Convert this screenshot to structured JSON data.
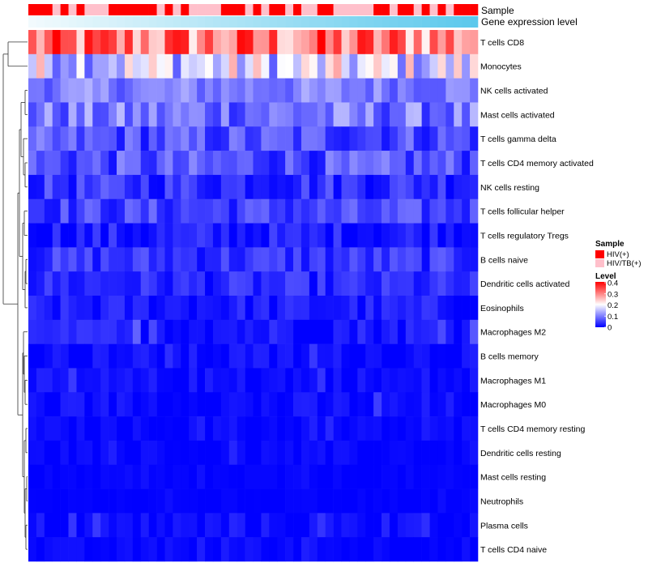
{
  "chart_data": {
    "type": "heatmap",
    "title": "",
    "annotations": {
      "sample": {
        "label": "Sample",
        "values": [
          "HIV(+)",
          "HIV(+)",
          "HIV(+)",
          "HIV/TB(+)",
          "HIV(+)",
          "HIV/TB(+)",
          "HIV(+)",
          "HIV/TB(+)",
          "HIV/TB(+)",
          "HIV/TB(+)",
          "HIV(+)",
          "HIV(+)",
          "HIV(+)",
          "HIV(+)",
          "HIV(+)",
          "HIV(+)",
          "HIV/TB(+)",
          "HIV(+)",
          "HIV/TB(+)",
          "HIV(+)",
          "HIV/TB(+)",
          "HIV/TB(+)",
          "HIV/TB(+)",
          "HIV/TB(+)",
          "HIV(+)",
          "HIV(+)",
          "HIV(+)",
          "HIV/TB(+)",
          "HIV(+)",
          "HIV/TB(+)",
          "HIV(+)",
          "HIV(+)",
          "HIV/TB(+)",
          "HIV(+)",
          "HIV/TB(+)",
          "HIV/TB(+)",
          "HIV(+)",
          "HIV(+)",
          "HIV/TB(+)",
          "HIV/TB(+)",
          "HIV/TB(+)",
          "HIV/TB(+)",
          "HIV/TB(+)",
          "HIV(+)",
          "HIV(+)",
          "HIV/TB(+)",
          "HIV(+)",
          "HIV(+)",
          "HIV/TB(+)",
          "HIV(+)",
          "HIV/TB(+)",
          "HIV(+)",
          "HIV/TB(+)",
          "HIV(+)",
          "HIV(+)",
          "HIV(+)"
        ]
      },
      "gene_expression": {
        "label": "Gene expression level",
        "values": [
          0.0,
          0.02,
          0.04,
          0.05,
          0.07,
          0.09,
          0.11,
          0.13,
          0.15,
          0.16,
          0.18,
          0.2,
          0.22,
          0.24,
          0.25,
          0.27,
          0.29,
          0.31,
          0.33,
          0.35,
          0.36,
          0.38,
          0.4,
          0.42,
          0.44,
          0.45,
          0.47,
          0.49,
          0.51,
          0.53,
          0.55,
          0.56,
          0.58,
          0.6,
          0.62,
          0.64,
          0.65,
          0.67,
          0.69,
          0.71,
          0.73,
          0.75,
          0.76,
          0.78,
          0.8,
          0.82,
          0.84,
          0.85,
          0.87,
          0.89,
          0.91,
          0.93,
          0.95,
          0.96,
          0.98,
          1.0
        ],
        "colors": [
          "#f2fafd",
          "#5bc8ec"
        ]
      }
    },
    "rows": [
      "T cells CD8",
      "Monocytes",
      "NK cells activated",
      "Mast cells activated",
      "T cells gamma delta",
      "T cells CD4 memory activated",
      "NK cells resting",
      "T cells follicular helper",
      "T cells regulatory  Tregs",
      "B cells naive",
      "Dendritic cells activated",
      "Eosinophils",
      "Macrophages M2",
      "B cells memory",
      "Macrophages M1",
      "Macrophages M0",
      "T cells CD4 memory resting",
      "Dendritic cells resting",
      "Mast cells resting",
      "Neutrophils",
      "Plasma cells",
      "T cells CD4 naive"
    ],
    "row_base": [
      0.3,
      0.17,
      0.1,
      0.09,
      0.06,
      0.06,
      0.04,
      0.05,
      0.02,
      0.04,
      0.03,
      0.02,
      0.02,
      0.01,
      0.008,
      0.008,
      0.004,
      0.003,
      0.001,
      0.001,
      0.008,
      0.004
    ],
    "row_var": [
      0.11,
      0.1,
      0.04,
      0.06,
      0.05,
      0.05,
      0.04,
      0.04,
      0.035,
      0.035,
      0.03,
      0.025,
      0.025,
      0.018,
      0.018,
      0.018,
      0.012,
      0.012,
      0.006,
      0.004,
      0.018,
      0.01
    ],
    "n_columns": 56,
    "legend": {
      "sample_title": "Sample",
      "sample_entries": [
        {
          "label": "HIV(+)",
          "color": "#ff0000"
        },
        {
          "label": "HIV/TB(+)",
          "color": "#ffc0cb"
        }
      ],
      "level_title": "Level",
      "level_ticks": [
        "0.4",
        "0.3",
        "0.2",
        "0.1",
        "0"
      ],
      "level_min": 0,
      "level_max": 0.4,
      "level_colors": [
        "#0000ff",
        "#ffffff",
        "#ff0000"
      ]
    }
  }
}
